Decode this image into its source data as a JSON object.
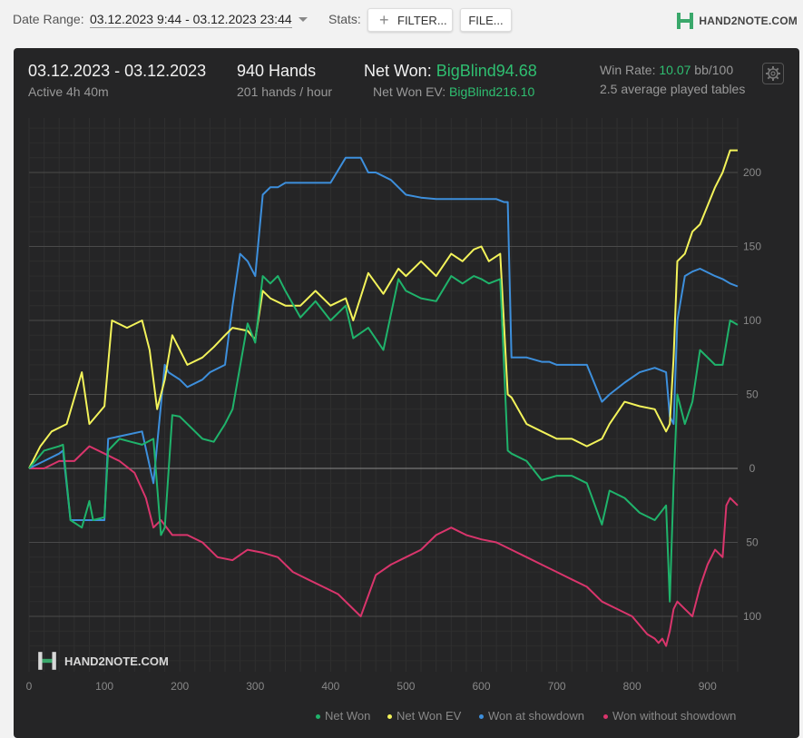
{
  "topbar": {
    "date_range_label": "Date Range:",
    "date_range_value": "03.12.2023 9:44 - 03.12.2023 23:44",
    "stats_label": "Stats:",
    "filter_button": "FILTER...",
    "file_button": "FILE...",
    "brand": "HAND2NOTE.COM"
  },
  "summary": {
    "date_span": "03.12.2023 - 03.12.2023",
    "active_time": "Active 4h 40m",
    "hands": "940 Hands",
    "hands_per_hour": "201 hands / hour",
    "net_won_label": "Net Won:",
    "net_won_value": "BigBlind94.68",
    "net_won_ev_label": "Net Won  EV:",
    "net_won_ev_value": "BigBlind216.10",
    "win_rate_label": "Win Rate:",
    "win_rate_value": "10.07",
    "win_rate_unit": "bb/100",
    "avg_tables": "2.5 average played tables"
  },
  "watermark": "HAND2NOTE.COM",
  "colors": {
    "net_won": "#1fb36b",
    "net_won_ev": "#f3f35a",
    "won_at_showdown": "#3d8fdc",
    "won_without_showdown": "#d9356c",
    "accent_green": "#2fbf71",
    "panel_bg": "#252526"
  },
  "chart_data": {
    "type": "line",
    "xlim": [
      0,
      940
    ],
    "ylim": [
      -130,
      230
    ],
    "x_ticks": [
      0,
      100,
      200,
      300,
      400,
      500,
      600,
      700,
      800,
      900
    ],
    "y_ticks": [
      200,
      150,
      100,
      50,
      0,
      -50,
      -100
    ],
    "y_tick_labels": [
      "200",
      "150",
      "100",
      "50",
      "0",
      "50",
      "100"
    ],
    "legend": [
      "Net Won",
      "Net Won  EV",
      "Won at showdown",
      "Won without showdown"
    ],
    "legend_position": "bottom-right",
    "grid": true,
    "series": [
      {
        "name": "Net Won",
        "x": [
          0,
          20,
          40,
          45,
          55,
          70,
          80,
          85,
          100,
          105,
          120,
          135,
          150,
          165,
          175,
          180,
          190,
          200,
          210,
          230,
          245,
          260,
          270,
          290,
          300,
          310,
          320,
          330,
          340,
          360,
          380,
          400,
          420,
          430,
          450,
          470,
          490,
          500,
          520,
          540,
          560,
          575,
          590,
          600,
          610,
          625,
          635,
          640,
          660,
          680,
          700,
          720,
          740,
          760,
          770,
          790,
          810,
          830,
          845,
          850,
          855,
          860,
          870,
          880,
          890,
          910,
          920,
          930,
          940
        ],
        "y": [
          0,
          12,
          15,
          16,
          -35,
          -40,
          -22,
          -35,
          -33,
          12,
          20,
          18,
          16,
          20,
          -45,
          -40,
          36,
          35,
          30,
          20,
          18,
          30,
          40,
          98,
          85,
          130,
          125,
          130,
          120,
          102,
          113,
          100,
          110,
          88,
          95,
          80,
          128,
          120,
          115,
          113,
          130,
          125,
          130,
          128,
          125,
          128,
          12,
          10,
          5,
          -8,
          -5,
          -5,
          -10,
          -38,
          -15,
          -20,
          -30,
          -35,
          -25,
          -90,
          -10,
          50,
          30,
          45,
          80,
          70,
          70,
          100,
          97
        ]
      },
      {
        "name": "Net Won  EV",
        "x": [
          0,
          15,
          30,
          50,
          70,
          80,
          100,
          110,
          130,
          150,
          160,
          170,
          180,
          190,
          200,
          210,
          230,
          245,
          260,
          270,
          290,
          300,
          310,
          320,
          340,
          360,
          380,
          400,
          420,
          430,
          450,
          470,
          490,
          500,
          520,
          540,
          560,
          575,
          590,
          600,
          610,
          625,
          635,
          640,
          660,
          680,
          700,
          720,
          740,
          760,
          770,
          790,
          810,
          830,
          845,
          850,
          855,
          860,
          870,
          880,
          890,
          910,
          920,
          930,
          940
        ],
        "y": [
          0,
          15,
          25,
          30,
          65,
          30,
          42,
          100,
          95,
          100,
          80,
          40,
          60,
          90,
          80,
          70,
          75,
          82,
          90,
          95,
          93,
          87,
          120,
          115,
          110,
          110,
          120,
          110,
          115,
          100,
          132,
          118,
          135,
          130,
          140,
          130,
          145,
          140,
          148,
          150,
          140,
          145,
          50,
          48,
          30,
          25,
          20,
          20,
          15,
          20,
          30,
          45,
          42,
          40,
          25,
          30,
          75,
          140,
          145,
          160,
          165,
          190,
          200,
          215,
          215
        ]
      },
      {
        "name": "Won at showdown",
        "x": [
          0,
          20,
          40,
          45,
          55,
          70,
          100,
          105,
          150,
          165,
          180,
          185,
          200,
          210,
          230,
          240,
          260,
          270,
          280,
          290,
          300,
          310,
          320,
          330,
          340,
          380,
          400,
          420,
          440,
          450,
          460,
          480,
          500,
          520,
          540,
          560,
          600,
          620,
          630,
          635,
          640,
          660,
          680,
          690,
          700,
          720,
          740,
          760,
          770,
          790,
          810,
          830,
          845,
          850,
          855,
          860,
          870,
          880,
          890,
          910,
          920,
          930,
          940
        ],
        "y": [
          0,
          5,
          10,
          12,
          -35,
          -35,
          -35,
          20,
          25,
          -10,
          70,
          65,
          60,
          55,
          60,
          65,
          70,
          110,
          145,
          140,
          130,
          185,
          190,
          190,
          193,
          193,
          193,
          210,
          210,
          200,
          200,
          195,
          185,
          183,
          182,
          182,
          182,
          182,
          180,
          180,
          75,
          75,
          72,
          72,
          70,
          70,
          70,
          45,
          50,
          58,
          65,
          68,
          65,
          35,
          30,
          100,
          130,
          133,
          135,
          130,
          128,
          125,
          123
        ]
      },
      {
        "name": "Won without showdown",
        "x": [
          0,
          20,
          40,
          60,
          80,
          100,
          120,
          140,
          155,
          165,
          175,
          190,
          210,
          230,
          250,
          270,
          290,
          310,
          330,
          350,
          370,
          390,
          410,
          430,
          440,
          460,
          480,
          500,
          520,
          540,
          560,
          580,
          600,
          620,
          640,
          660,
          680,
          700,
          720,
          740,
          760,
          780,
          800,
          820,
          830,
          835,
          840,
          845,
          850,
          855,
          860,
          870,
          880,
          890,
          900,
          910,
          920,
          925,
          930,
          940
        ],
        "y": [
          0,
          0,
          5,
          5,
          15,
          10,
          5,
          -3,
          -20,
          -40,
          -35,
          -45,
          -45,
          -50,
          -60,
          -62,
          -55,
          -57,
          -60,
          -70,
          -75,
          -80,
          -85,
          -95,
          -100,
          -72,
          -65,
          -60,
          -55,
          -45,
          -40,
          -45,
          -48,
          -50,
          -55,
          -60,
          -65,
          -70,
          -75,
          -80,
          -90,
          -95,
          -100,
          -112,
          -115,
          -118,
          -115,
          -120,
          -110,
          -95,
          -90,
          -95,
          -100,
          -80,
          -65,
          -55,
          -60,
          -25,
          -20,
          -25
        ]
      }
    ]
  }
}
